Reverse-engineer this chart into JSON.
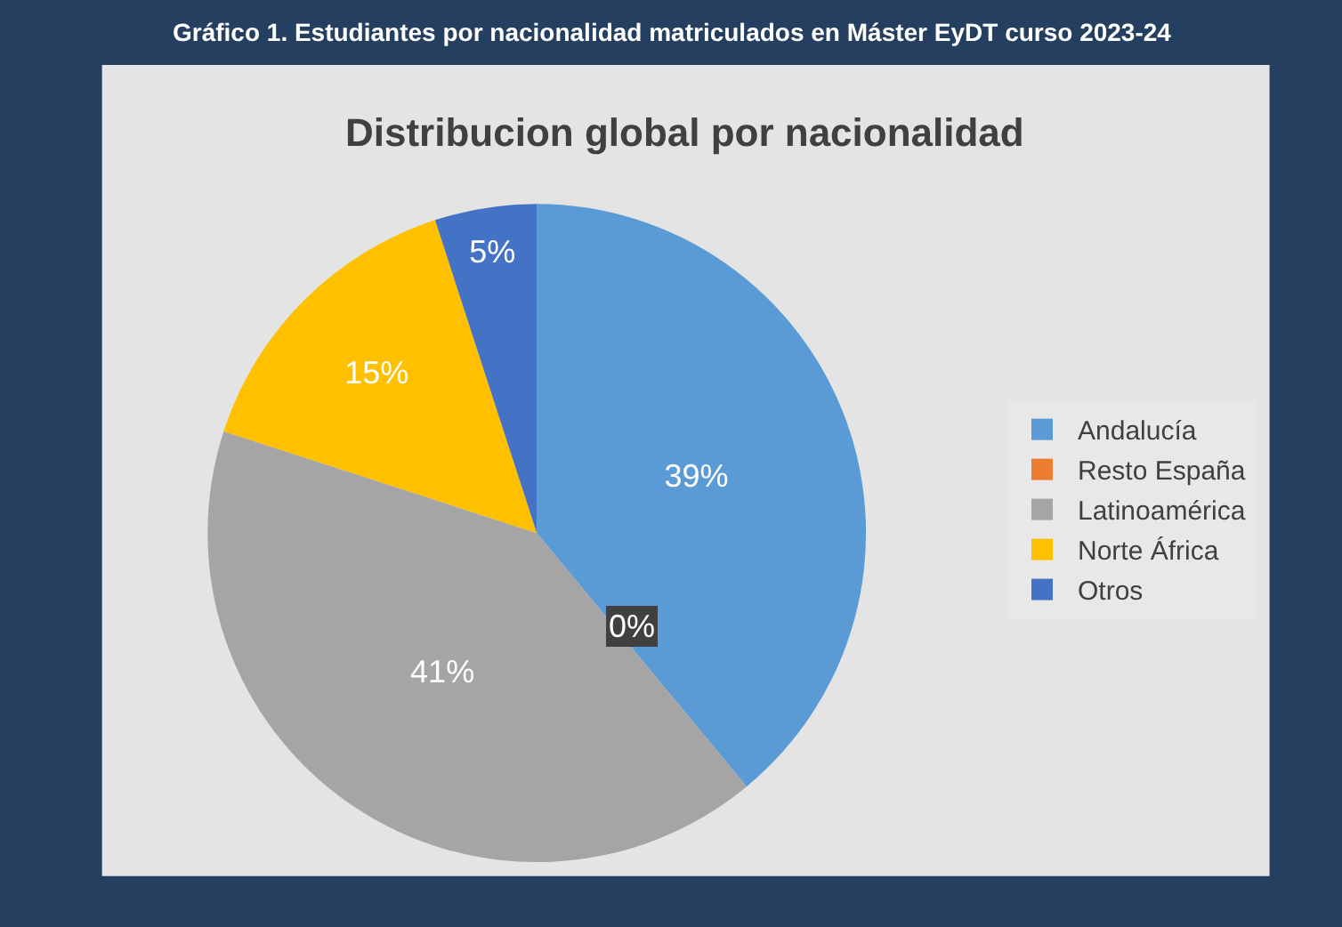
{
  "chart_data": {
    "type": "pie",
    "title": "Gráfico 1. Estudiantes por nacionalidad matriculados en Máster EyDT curso 2023-24",
    "subtitle": "Distribucion global por nacionalidad",
    "categories": [
      "Andalucía",
      "Resto España",
      "Latinoamérica",
      "Norte África",
      "Otros"
    ],
    "values": [
      39,
      0,
      41,
      15,
      5
    ],
    "value_labels": [
      "39%",
      "0%",
      "41%",
      "15%",
      "5%"
    ],
    "colors": [
      "#5b9bd5",
      "#ed7d31",
      "#a5a5a5",
      "#ffc000",
      "#4472c4"
    ],
    "legend": "right"
  }
}
